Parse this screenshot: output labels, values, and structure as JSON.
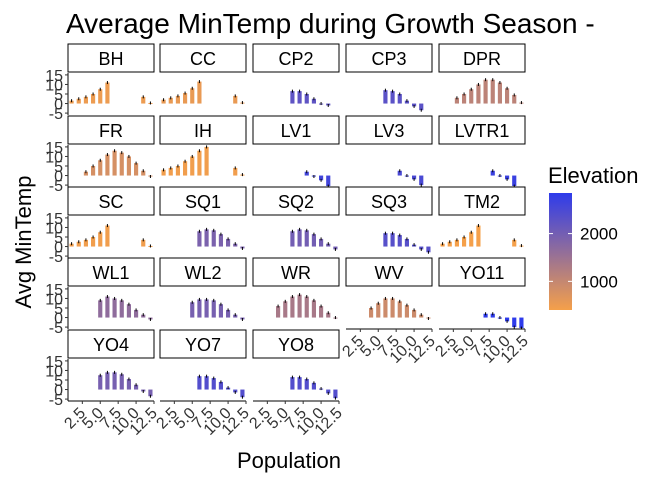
{
  "chart_data": {
    "type": "bar",
    "title": "Average MinTemp during Growth Season -",
    "xlabel": "Population",
    "ylabel": "Avg MinTemp",
    "x_ticks": [
      "2.5",
      "5.0",
      "7.5",
      "10.0",
      "12.5"
    ],
    "y_ticks": [
      "-5",
      "0",
      "5",
      "10",
      "15"
    ],
    "xlim": [
      0.5,
      12.5
    ],
    "ylim": [
      -6,
      16
    ],
    "grid": false,
    "legend": {
      "title": "Elevation",
      "position": "right",
      "ticks": [
        "1000",
        "2000"
      ],
      "low_color": "#F5A04A",
      "high_color": "#2E3BEB"
    },
    "facets": [
      {
        "label": "BH",
        "elevation": 500,
        "values": [
          1.5,
          2.5,
          3.5,
          5,
          7.5,
          11,
          null,
          null,
          null,
          null,
          3.5,
          0.3
        ]
      },
      {
        "label": "CC",
        "elevation": 550,
        "values": [
          2,
          3,
          4,
          5.5,
          8,
          11.5,
          null,
          null,
          null,
          null,
          4,
          0.5
        ]
      },
      {
        "label": "CP2",
        "elevation": 2250,
        "values": [
          null,
          null,
          null,
          null,
          null,
          6.5,
          6.5,
          5,
          2.5,
          0,
          -1,
          null
        ]
      },
      {
        "label": "CP3",
        "elevation": 2300,
        "values": [
          null,
          null,
          null,
          null,
          null,
          7,
          6.5,
          5,
          1.5,
          -1.5,
          -3.5,
          null
        ]
      },
      {
        "label": "DPR",
        "elevation": 1100,
        "values": [
          null,
          null,
          3,
          5,
          7.5,
          10,
          12.5,
          12.5,
          11,
          8,
          4.5,
          0.5
        ]
      },
      {
        "label": "FR",
        "elevation": 800,
        "values": [
          null,
          null,
          2,
          5,
          8,
          11,
          13,
          12,
          10,
          6.5,
          2.5,
          -0.5
        ]
      },
      {
        "label": "IH",
        "elevation": 450,
        "values": [
          3,
          4,
          5,
          7.5,
          10,
          13,
          15,
          null,
          null,
          null,
          4,
          0.5
        ]
      },
      {
        "label": "LV1",
        "elevation": 2600,
        "values": [
          null,
          null,
          null,
          null,
          null,
          null,
          null,
          2,
          -0.5,
          -2.5,
          -5.5,
          null
        ]
      },
      {
        "label": "LV3",
        "elevation": 2500,
        "values": [
          null,
          null,
          null,
          null,
          null,
          null,
          null,
          2.5,
          0,
          -2,
          -5,
          null
        ]
      },
      {
        "label": "LVTR1",
        "elevation": 2700,
        "values": [
          null,
          null,
          null,
          null,
          null,
          null,
          null,
          2.5,
          0,
          -2,
          -5.5,
          null
        ]
      },
      {
        "label": "SC",
        "elevation": 450,
        "values": [
          1.5,
          2.5,
          3.5,
          5,
          7.5,
          11,
          null,
          null,
          null,
          null,
          3.5,
          0.3
        ]
      },
      {
        "label": "SQ1",
        "elevation": 1900,
        "values": [
          null,
          null,
          null,
          null,
          null,
          8,
          9,
          8.5,
          6.5,
          4,
          1.5,
          -1
        ]
      },
      {
        "label": "SQ2",
        "elevation": 2000,
        "values": [
          null,
          null,
          null,
          null,
          null,
          8,
          9,
          8.5,
          6.5,
          4,
          1.5,
          -1.5
        ]
      },
      {
        "label": "SQ3",
        "elevation": 2350,
        "values": [
          null,
          null,
          null,
          null,
          null,
          7,
          7,
          6,
          4,
          1,
          -1.5,
          -3
        ]
      },
      {
        "label": "TM2",
        "elevation": 400,
        "values": [
          1.5,
          2.5,
          3.5,
          5,
          7.5,
          11,
          null,
          null,
          null,
          null,
          3.5,
          0.5
        ]
      },
      {
        "label": "WL1",
        "elevation": 1650,
        "values": [
          null,
          null,
          null,
          null,
          9,
          11,
          10,
          9,
          7,
          4,
          1.5,
          -1
        ]
      },
      {
        "label": "WL2",
        "elevation": 1950,
        "values": [
          null,
          null,
          null,
          null,
          8,
          9.5,
          9.5,
          9,
          7,
          4,
          1.5,
          -1
        ]
      },
      {
        "label": "WR",
        "elevation": 1350,
        "values": [
          null,
          null,
          null,
          6,
          8.5,
          11,
          12,
          11,
          9,
          6,
          2.5,
          0
        ]
      },
      {
        "label": "WV",
        "elevation": 900,
        "values": [
          null,
          null,
          null,
          5,
          7.5,
          10,
          10,
          8.5,
          6.5,
          4,
          1.5,
          -0.5
        ]
      },
      {
        "label": "YO11",
        "elevation": 2850,
        "values": [
          null,
          null,
          null,
          null,
          null,
          null,
          2,
          2,
          0,
          -2,
          -5,
          -5.5
        ]
      },
      {
        "label": "YO4",
        "elevation": 1950,
        "values": [
          null,
          null,
          null,
          null,
          7.5,
          9,
          9,
          8,
          5.5,
          2.5,
          -1,
          -3.5
        ]
      },
      {
        "label": "YO7",
        "elevation": 2400,
        "values": [
          null,
          null,
          null,
          null,
          null,
          7,
          7,
          6,
          4,
          1,
          -1.5,
          -4
        ]
      },
      {
        "label": "YO8",
        "elevation": 2400,
        "values": [
          null,
          null,
          null,
          null,
          null,
          6.5,
          6.5,
          5.5,
          3.5,
          0.5,
          -2,
          -4.5
        ]
      }
    ]
  }
}
